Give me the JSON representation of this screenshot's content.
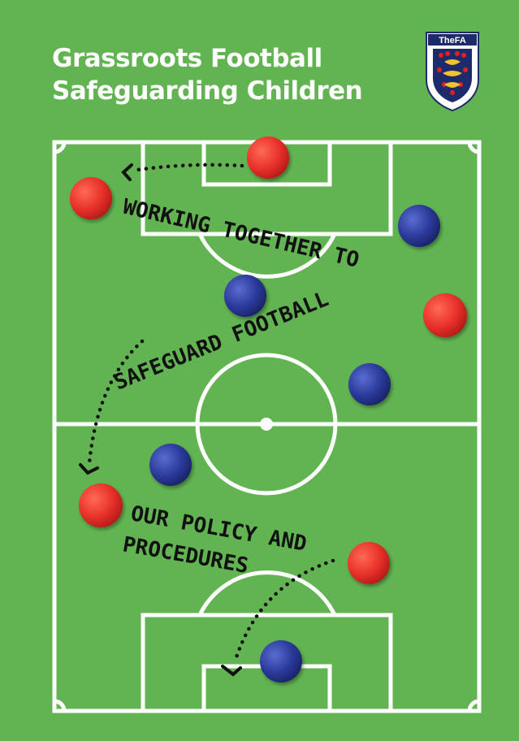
{
  "title": {
    "line1": "Grassroots Football",
    "line2": "Safeguarding Children"
  },
  "crest": {
    "text": "TheFA",
    "icon": "three-lions-shield"
  },
  "slogan": {
    "line1": "WORKING TOGETHER TO",
    "line2": "SAFEGUARD FOOTBALL",
    "line3": "OUR POLICY AND",
    "line4": "PROCEDURES"
  },
  "colors": {
    "pitch": "#62b452",
    "red_player": "#e8312b",
    "blue_player": "#2b3a9a",
    "lines": "#ffffff"
  }
}
